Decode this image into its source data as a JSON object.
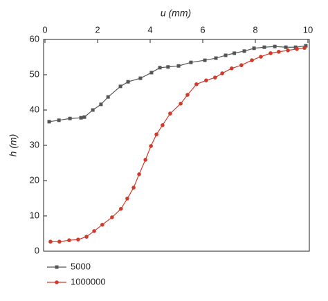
{
  "chart_data": {
    "type": "line",
    "x_label": "u (mm)",
    "y_label": "h (m)",
    "xlim": [
      0,
      10
    ],
    "xticks": [
      0,
      2,
      4,
      6,
      8,
      10
    ],
    "ylim": [
      0,
      60
    ],
    "yticks": [
      0,
      10,
      20,
      30,
      40,
      50,
      60
    ],
    "legend": "bottom-left",
    "series": [
      {
        "name": "5000",
        "color": "#555555",
        "marker": "square",
        "x": [
          0.16,
          0.53,
          0.95,
          1.37,
          1.5,
          1.82,
          2.13,
          2.4,
          2.87,
          3.16,
          3.63,
          4.05,
          4.37,
          4.68,
          5.08,
          5.55,
          6.08,
          6.5,
          6.87,
          7.2,
          7.58,
          7.95,
          8.34,
          8.74,
          9.16,
          9.53,
          9.92
        ],
        "values": [
          36.7,
          37.1,
          37.6,
          37.8,
          38.0,
          40.0,
          41.6,
          43.7,
          46.7,
          48.0,
          49.0,
          50.6,
          52.0,
          52.2,
          52.5,
          53.5,
          54.1,
          54.7,
          55.5,
          56.1,
          56.7,
          57.5,
          57.8,
          58.0,
          57.8,
          57.8,
          58.2
        ]
      },
      {
        "name": "1000000",
        "color": "#d03a2a",
        "marker": "circle",
        "x": [
          0.21,
          0.55,
          0.92,
          1.26,
          1.58,
          1.87,
          2.18,
          2.55,
          2.89,
          3.13,
          3.37,
          3.58,
          3.82,
          4.03,
          4.24,
          4.47,
          4.76,
          5.16,
          5.42,
          5.76,
          6.13,
          6.47,
          6.74,
          7.1,
          7.47,
          7.87,
          8.21,
          8.58,
          8.89,
          9.24,
          9.58,
          9.87
        ],
        "values": [
          2.7,
          2.7,
          3.1,
          3.3,
          4.1,
          5.7,
          7.5,
          9.6,
          12.0,
          14.9,
          18.0,
          21.8,
          25.9,
          29.8,
          33.1,
          35.7,
          39.0,
          41.8,
          44.3,
          47.3,
          48.4,
          49.2,
          50.4,
          51.8,
          52.7,
          54.1,
          55.1,
          56.1,
          56.5,
          56.9,
          57.3,
          57.6
        ]
      }
    ]
  }
}
